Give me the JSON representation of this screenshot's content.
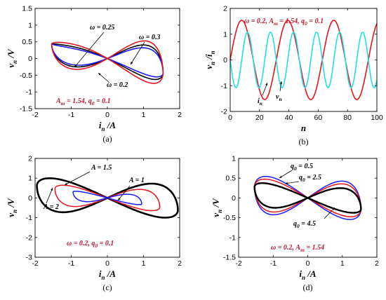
{
  "chart_data": [
    {
      "id": "a",
      "type": "line",
      "caption": "(a)",
      "xlabel": {
        "base": "i",
        "sub": "n",
        "unit": "/A"
      },
      "ylabel": {
        "base": "v",
        "sub": "n",
        "unit": "/V"
      },
      "xlim": [
        -2,
        2
      ],
      "ylim": [
        -1.5,
        1.5
      ],
      "xticks": [
        -2,
        -1,
        0,
        1,
        2
      ],
      "yticks": [
        -1.5,
        -1,
        -0.5,
        0,
        0.5,
        1,
        1.5
      ],
      "grid": false,
      "params": "A_m = 1.54,  q_0 = 0.1",
      "series": [
        {
          "label": "ω = 0.25",
          "color": "#000000",
          "amp": 1.54,
          "loop": 0.78
        },
        {
          "label": "ω = 0.3",
          "color": "#1a1aff",
          "amp": 1.54,
          "loop": 0.64
        },
        {
          "label": "ω = 0.2",
          "color": "#e8141c",
          "amp": 1.54,
          "loop": 0.98
        }
      ],
      "annotations": [
        "ω = 0.25",
        "ω = 0.3",
        "ω = 0.2"
      ]
    },
    {
      "id": "b",
      "type": "line",
      "caption": "(b)",
      "xlabel": {
        "base": "n",
        "sub": "",
        "unit": ""
      },
      "ylabel": {
        "base": "v",
        "sub": "n",
        "unit": "/i",
        "sub2": "n"
      },
      "xlim": [
        0,
        100
      ],
      "ylim": [
        -2,
        2
      ],
      "xticks": [
        0,
        20,
        40,
        60,
        80,
        100
      ],
      "yticks": [
        -2,
        -1,
        0,
        1,
        2
      ],
      "grid": false,
      "params": "ω = 0.2,  A_m = 1.54,  q_0 = 0.1",
      "series": [
        {
          "label": "i_n",
          "color": "#e8141c",
          "amplitude": 1.54,
          "period": 31.4
        },
        {
          "label": "v_n",
          "color": "#22e0e8",
          "amplitude": 1.2,
          "period": 15.7
        }
      ],
      "annotations": [
        "i_n",
        "v_n"
      ]
    },
    {
      "id": "c",
      "type": "line",
      "caption": "(c)",
      "xlabel": {
        "base": "i",
        "sub": "n",
        "unit": "/A"
      },
      "ylabel": {
        "base": "v",
        "sub": "n",
        "unit": "/V"
      },
      "xlim": [
        -2,
        2
      ],
      "ylim": [
        -3,
        2
      ],
      "xticks": [
        -2,
        -1,
        0,
        1,
        2
      ],
      "yticks": [
        -3,
        -2,
        -1,
        0,
        1,
        2
      ],
      "grid": false,
      "params": "ω = 0.2,  q_0 = 0.1",
      "series": [
        {
          "label": "A = 2",
          "color": "#000000",
          "amp": 1.95,
          "loop": 1.95
        },
        {
          "label": "A = 1.5",
          "color": "#e8141c",
          "amp": 1.45,
          "loop": 1.2
        },
        {
          "label": "A = 1",
          "color": "#1a1aff",
          "amp": 0.95,
          "loop": 0.55
        }
      ],
      "annotations": [
        "A = 1.5",
        "A = 1",
        "A = 2"
      ]
    },
    {
      "id": "d",
      "type": "line",
      "caption": "(d)",
      "xlabel": {
        "base": "i",
        "sub": "n",
        "unit": "/A"
      },
      "ylabel": {
        "base": "v",
        "sub": "n",
        "unit": "/V"
      },
      "xlim": [
        -2,
        2
      ],
      "ylim": [
        -1.5,
        1
      ],
      "xticks": [
        -2,
        -1,
        0,
        1,
        2
      ],
      "yticks": [
        -1.5,
        -1,
        -0.5,
        0,
        0.5,
        1
      ],
      "grid": false,
      "params": "ω = 0.2,  A_m = 1.54",
      "series": [
        {
          "label": "q_0 = 0.5",
          "color": "#1a1aff",
          "amp": 1.54,
          "loop": 1.0
        },
        {
          "label": "q_0 = 2.5",
          "color": "#e8141c",
          "amp": 1.54,
          "loop": 0.85
        },
        {
          "label": "q_0 = 4.5",
          "color": "#000000",
          "amp": 1.54,
          "loop": 0.62
        }
      ],
      "annotations": [
        "q_0 = 0.5",
        "q_0 = 2.5",
        "q_0 = 4.5"
      ]
    }
  ]
}
